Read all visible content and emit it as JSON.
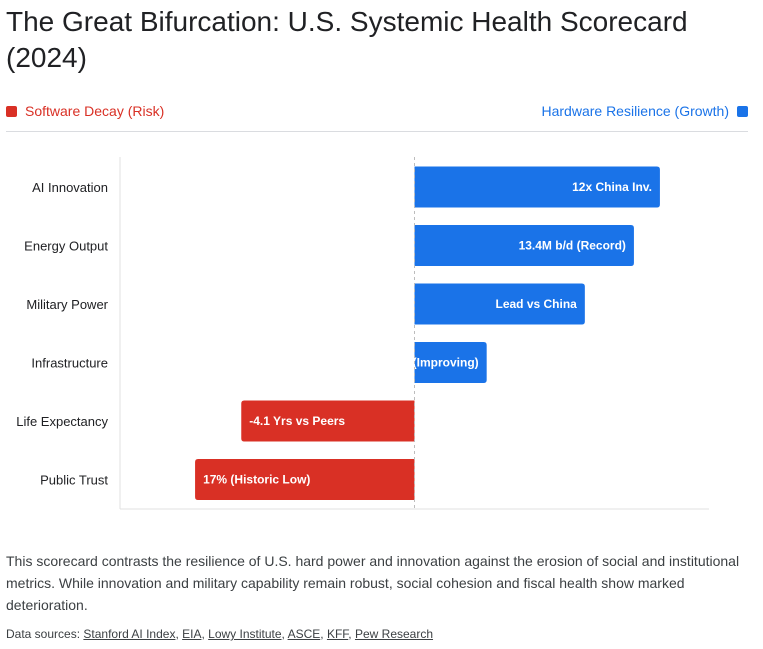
{
  "title": "The Great Bifurcation: U.S. Systemic Health Scorecard (2024)",
  "legend": {
    "left": {
      "label": "Software Decay (Risk)",
      "color": "#d93025"
    },
    "right": {
      "label": "Hardware Resilience (Growth)",
      "color": "#1a73e8"
    }
  },
  "chart_data": {
    "type": "bar",
    "orientation": "horizontal",
    "categories": [
      "AI Innovation",
      "Energy Output",
      "Military Power",
      "Infrastructure",
      "Life Expectancy",
      "Public Trust"
    ],
    "values": [
      85,
      76,
      59,
      25,
      -60,
      -76
    ],
    "labels": [
      "12x China Inv.",
      "13.4M b/d (Record)",
      "Lead vs China",
      "C (Improving)",
      "-4.1 Yrs vs Peers",
      "17% (Historic Low)"
    ],
    "colors": [
      "#1a73e8",
      "#1a73e8",
      "#1a73e8",
      "#1a73e8",
      "#d93025",
      "#d93025"
    ],
    "xlim": [
      -102,
      102
    ],
    "zero_line": "dashed"
  },
  "description": "This scorecard contrasts the resilience of U.S. hard power and innovation against the erosion of social and institutional metrics. While innovation and military capability remain robust, social cohesion and fiscal health show marked deterioration.",
  "sources": {
    "prefix": "Data sources:",
    "links": [
      "Stanford AI Index",
      "EIA",
      "Lowy Institute",
      "ASCE",
      "KFF",
      "Pew Research"
    ]
  }
}
